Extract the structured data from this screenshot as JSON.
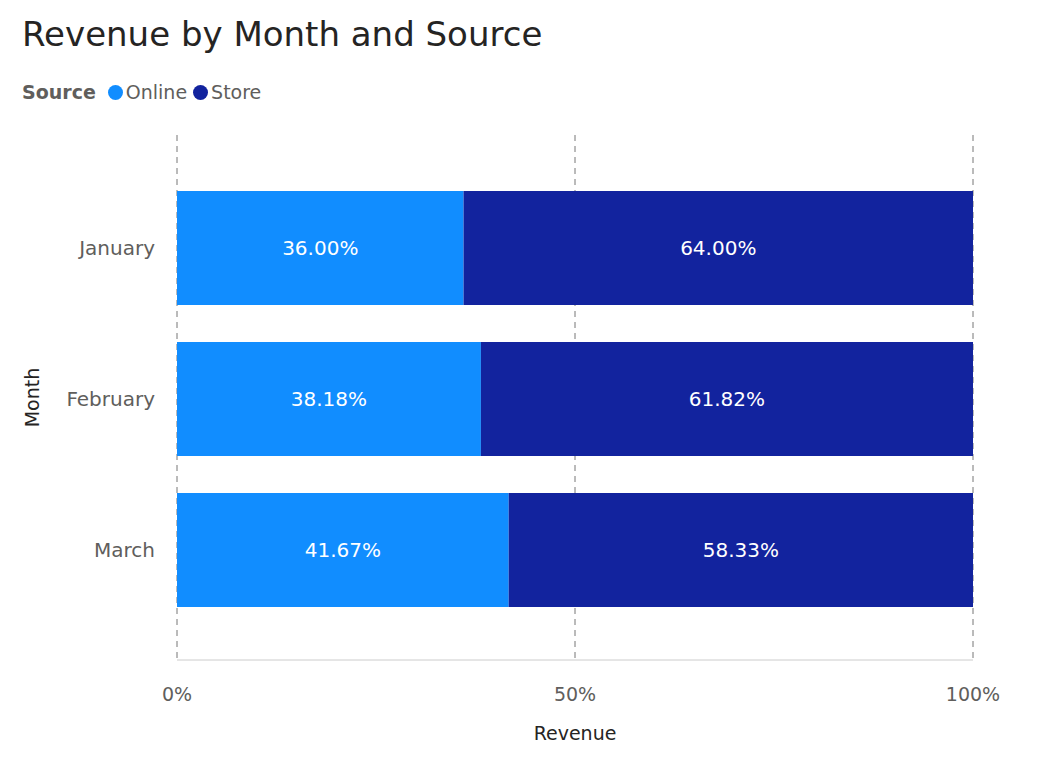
{
  "chart_data": {
    "type": "bar",
    "title": "Revenue by Month and Source",
    "legend_title": "Source",
    "x_label": "Revenue",
    "y_label": "Month",
    "orientation": "horizontal",
    "stacked": true,
    "categories": [
      "January",
      "February",
      "March"
    ],
    "series": [
      {
        "name": "Online",
        "color": "#118DFF",
        "values": [
          36,
          38.18,
          41.67
        ],
        "value_labels": [
          "36.00%",
          "38.18%",
          "41.67%"
        ]
      },
      {
        "name": "Store",
        "color": "#12239E",
        "values": [
          64,
          61.82,
          58.33
        ],
        "value_labels": [
          "64.00%",
          "61.82%",
          "58.33%"
        ]
      }
    ],
    "xlim": [
      0,
      100
    ],
    "xticks": [
      {
        "value": 0,
        "label": "0%"
      },
      {
        "value": 50,
        "label": "50%"
      },
      {
        "value": 100,
        "label": "100%"
      }
    ],
    "grid": true,
    "legend": "top left",
    "data_labels": true
  }
}
